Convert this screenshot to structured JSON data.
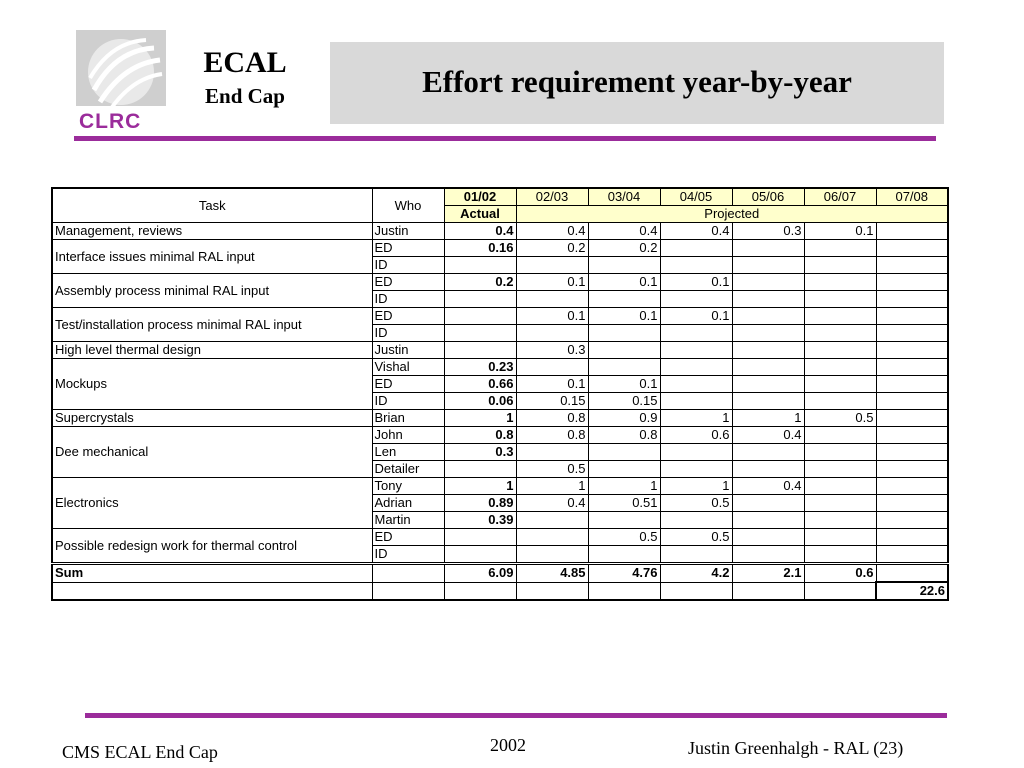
{
  "header": {
    "logo_text": "CLRC",
    "ecal": "ECAL",
    "end_cap": "End Cap",
    "title": "Effort requirement year-by-year"
  },
  "table": {
    "task_header": "Task",
    "who_header": "Who",
    "years": [
      "01/02",
      "02/03",
      "03/04",
      "04/05",
      "05/06",
      "06/07",
      "07/08"
    ],
    "actual_label": "Actual",
    "projected_label": "Projected",
    "groups": [
      {
        "task": "Management, reviews",
        "rows": [
          {
            "who": "Justin",
            "v": [
              "0.4",
              "0.4",
              "0.4",
              "0.4",
              "0.3",
              "0.1",
              ""
            ]
          }
        ]
      },
      {
        "task": "Interface issues minimal RAL input",
        "rows": [
          {
            "who": "ED",
            "v": [
              "0.16",
              "0.2",
              "0.2",
              "",
              "",
              "",
              ""
            ]
          },
          {
            "who": "ID",
            "v": [
              "",
              "",
              "",
              "",
              "",
              "",
              ""
            ]
          }
        ]
      },
      {
        "task": "Assembly process minimal RAL input",
        "rows": [
          {
            "who": "ED",
            "v": [
              "0.2",
              "0.1",
              "0.1",
              "0.1",
              "",
              "",
              ""
            ]
          },
          {
            "who": "ID",
            "v": [
              "",
              "",
              "",
              "",
              "",
              "",
              ""
            ]
          }
        ]
      },
      {
        "task": "Test/installation process minimal RAL input",
        "rows": [
          {
            "who": "ED",
            "v": [
              "",
              "0.1",
              "0.1",
              "0.1",
              "",
              "",
              ""
            ]
          },
          {
            "who": "ID",
            "v": [
              "",
              "",
              "",
              "",
              "",
              "",
              ""
            ]
          }
        ]
      },
      {
        "task": "High level thermal design",
        "rows": [
          {
            "who": "Justin",
            "v": [
              "",
              "0.3",
              "",
              "",
              "",
              "",
              ""
            ]
          }
        ]
      },
      {
        "task": "Mockups",
        "rows": [
          {
            "who": "Vishal",
            "v": [
              "0.23",
              "",
              "",
              "",
              "",
              "",
              ""
            ]
          },
          {
            "who": "ED",
            "v": [
              "0.66",
              "0.1",
              "0.1",
              "",
              "",
              "",
              ""
            ]
          },
          {
            "who": "ID",
            "v": [
              "0.06",
              "0.15",
              "0.15",
              "",
              "",
              "",
              ""
            ]
          }
        ]
      },
      {
        "task": "Supercrystals",
        "rows": [
          {
            "who": "Brian",
            "v": [
              "1",
              "0.8",
              "0.9",
              "1",
              "1",
              "0.5",
              ""
            ]
          }
        ]
      },
      {
        "task": "Dee mechanical",
        "rows": [
          {
            "who": "John",
            "v": [
              "0.8",
              "0.8",
              "0.8",
              "0.6",
              "0.4",
              "",
              ""
            ]
          },
          {
            "who": "Len",
            "v": [
              "0.3",
              "",
              "",
              "",
              "",
              "",
              ""
            ]
          },
          {
            "who": "Detailer",
            "v": [
              "",
              "0.5",
              "",
              "",
              "",
              "",
              ""
            ]
          }
        ]
      },
      {
        "task": "Electronics",
        "rows": [
          {
            "who": "Tony",
            "v": [
              "1",
              "1",
              "1",
              "1",
              "0.4",
              "",
              ""
            ]
          },
          {
            "who": "Adrian",
            "v": [
              "0.89",
              "0.4",
              "0.51",
              "0.5",
              "",
              "",
              ""
            ]
          },
          {
            "who": "Martin",
            "v": [
              "0.39",
              "",
              "",
              "",
              "",
              "",
              ""
            ]
          }
        ]
      },
      {
        "task": "Possible redesign work for thermal control",
        "rows": [
          {
            "who": "ED",
            "v": [
              "",
              "",
              "0.5",
              "0.5",
              "",
              "",
              ""
            ]
          },
          {
            "who": "ID",
            "v": [
              "",
              "",
              "",
              "",
              "",
              "",
              ""
            ]
          }
        ]
      }
    ],
    "sum_label": "Sum",
    "sums": [
      "6.09",
      "4.85",
      "4.76",
      "4.2",
      "2.1",
      "0.6",
      ""
    ],
    "total": "22.6"
  },
  "footer": {
    "left": "CMS ECAL End Cap",
    "center": "2002",
    "right": "Justin Greenhalgh - RAL (23)"
  },
  "colors": {
    "accent": "#9b2c9b",
    "title_bg": "#d9d9d9",
    "highlight": "#ffffcc"
  }
}
